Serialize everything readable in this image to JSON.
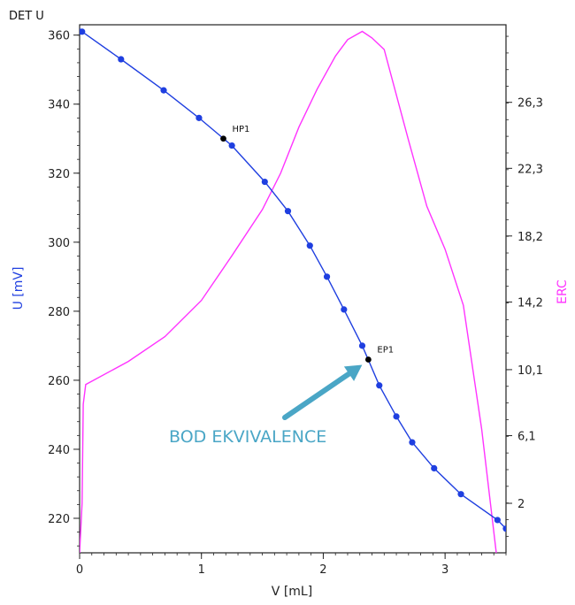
{
  "chart_data": {
    "type": "line",
    "title": "DET U",
    "xlabel": "V [mL]",
    "ylabel_left": "U [mV]",
    "ylabel_right": "ERC",
    "xlim": [
      0,
      3.5
    ],
    "ylim_left": [
      210,
      363
    ],
    "ylim_right": [
      -1.0,
      31.0
    ],
    "x_ticks": [
      0,
      1,
      2,
      3
    ],
    "y_ticks_left": [
      220,
      240,
      260,
      280,
      300,
      320,
      340,
      360
    ],
    "y_ticks_right": [
      {
        "value": 2.0,
        "label": "2"
      },
      {
        "value": 6.1,
        "label": "6,1"
      },
      {
        "value": 10.1,
        "label": "10,1"
      },
      {
        "value": 14.2,
        "label": "14,2"
      },
      {
        "value": 18.2,
        "label": "18,2"
      },
      {
        "value": 22.3,
        "label": "22,3"
      },
      {
        "value": 26.3,
        "label": "26,3"
      }
    ],
    "colors": {
      "potential": "#1f3fe0",
      "erc": "#ff33ff",
      "annotation": "#4aa6c6",
      "markers": "#000000"
    },
    "series": [
      {
        "name": "U",
        "axis": "left",
        "x": [
          0.0,
          0.02,
          0.34,
          0.69,
          0.98,
          1.25,
          1.52,
          1.71,
          1.89,
          2.03,
          2.17,
          2.32,
          2.46,
          2.6,
          2.73,
          2.91,
          3.13,
          3.43,
          3.5
        ],
        "y": [
          361,
          361,
          353,
          344,
          336,
          328,
          317.5,
          309,
          299,
          290,
          280.5,
          270,
          258.5,
          249.5,
          242,
          234.5,
          227,
          219.5,
          217
        ]
      },
      {
        "name": "ERC",
        "axis": "right",
        "x": [
          0.0,
          0.02,
          0.03,
          0.05,
          0.4,
          0.7,
          1.0,
          1.25,
          1.5,
          1.65,
          1.8,
          1.95,
          2.1,
          2.2,
          2.32,
          2.4,
          2.5,
          2.7,
          2.85,
          3.0,
          3.15,
          3.3,
          3.42
        ],
        "y": [
          -1.0,
          2.0,
          8.0,
          9.2,
          10.6,
          12.1,
          14.3,
          17.0,
          19.8,
          22.0,
          24.8,
          27.1,
          29.1,
          30.1,
          30.6,
          30.2,
          29.5,
          24.0,
          20.0,
          17.4,
          14.0,
          6.5,
          -1.0
        ]
      }
    ],
    "markers": [
      {
        "label": "HP1",
        "x": 1.18,
        "y": 330
      },
      {
        "label": "EP1",
        "x": 2.37,
        "y": 266
      }
    ],
    "annotation": {
      "text": "BOD EKVIVALENCE",
      "target": "EP1"
    }
  }
}
